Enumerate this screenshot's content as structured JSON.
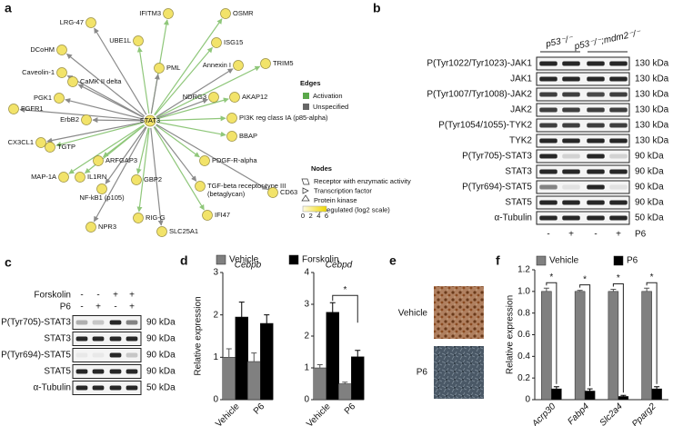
{
  "panels": [
    "a",
    "b",
    "c",
    "d",
    "e",
    "f"
  ],
  "network": {
    "center": "STAT3",
    "nodes": [
      {
        "label": "LRG-47",
        "edge": "Unspecified"
      },
      {
        "label": "IFITM3",
        "edge": "Activation"
      },
      {
        "label": "OSMR",
        "edge": "Activation"
      },
      {
        "label": "UBE1L",
        "edge": "Activation"
      },
      {
        "label": "DCoHM",
        "edge": "Unspecified"
      },
      {
        "label": "ISG15",
        "edge": "Activation"
      },
      {
        "label": "PML",
        "edge": "Unspecified"
      },
      {
        "label": "Annexin I",
        "edge": "Unspecified"
      },
      {
        "label": "TRIM5",
        "edge": "Activation"
      },
      {
        "label": "Caveolin-1",
        "edge": "Unspecified"
      },
      {
        "label": "CaMK II delta",
        "edge": "Unspecified"
      },
      {
        "label": "NDRG3",
        "edge": "Unspecified"
      },
      {
        "label": "AKAP12",
        "edge": "Activation"
      },
      {
        "label": "FGFR1",
        "edge": "Unspecified"
      },
      {
        "label": "PGK1",
        "edge": "Unspecified"
      },
      {
        "label": "ErbB2",
        "edge": "Unspecified"
      },
      {
        "label": "PI3K reg class IA (p85-alpha)",
        "edge": "Activation"
      },
      {
        "label": "CX3CL1",
        "edge": "Unspecified"
      },
      {
        "label": "TGTP",
        "edge": "Activation"
      },
      {
        "label": "BBAP",
        "edge": "Activation"
      },
      {
        "label": "ARFGAP3",
        "edge": "Activation"
      },
      {
        "label": "PDGF-R-alpha",
        "edge": "Activation"
      },
      {
        "label": "MAP-1A",
        "edge": "Activation"
      },
      {
        "label": "IL1RN",
        "edge": "Activation"
      },
      {
        "label": "GBP2",
        "edge": "Activation"
      },
      {
        "label": "NF-kB1 (p105)",
        "edge": "Unspecified"
      },
      {
        "label": [
          "TGF-beta receptor type III",
          "(betaglycan)"
        ],
        "edge": "Unspecified"
      },
      {
        "label": "CD63",
        "edge": "Unspecified"
      },
      {
        "label": "RIG-G",
        "edge": "Activation"
      },
      {
        "label": "IFI47",
        "edge": "Activation"
      },
      {
        "label": "NPR3",
        "edge": "Unspecified"
      },
      {
        "label": "SLC25A1",
        "edge": "Unspecified"
      }
    ],
    "edge_legend": {
      "title": "Edges",
      "items": [
        "Activation",
        "Unspecified"
      ]
    },
    "node_legend": {
      "title": "Nodes",
      "items": [
        "Receptor with enzymatic activity",
        "Transcription factor",
        "Protein kinase",
        "Up regulated (log2 scale)"
      ],
      "scale": [
        0,
        2,
        4,
        6
      ]
    }
  },
  "blot_b": {
    "header": [
      "p53⁻/⁻",
      "p53⁻/⁻;mdm2⁻/⁻"
    ],
    "rows": [
      {
        "label": "P(Tyr1022/Tyr1023)-JAK1",
        "size": "130 kDa"
      },
      {
        "label": "JAK1",
        "size": "130 kDa"
      },
      {
        "label": "P(Tyr1007/Tyr1008)-JAK2",
        "size": "130 kDa"
      },
      {
        "label": "JAK2",
        "size": "130 kDa"
      },
      {
        "label": "P(Tyr1054/1055)-TYK2",
        "size": "130 kDa"
      },
      {
        "label": "TYK2",
        "size": "130 kDa"
      },
      {
        "label": "P(Tyr705)-STAT3",
        "size": "90 kDa"
      },
      {
        "label": "STAT3",
        "size": "90 kDa"
      },
      {
        "label": "P(Tyr694)-STAT5",
        "size": "90 kDa"
      },
      {
        "label": "STAT5",
        "size": "90 kDa"
      },
      {
        "label": "α-Tubulin",
        "size": "50 kDa"
      }
    ],
    "treatment": {
      "label": "P6",
      "lanes": [
        "-",
        "+",
        "-",
        "+"
      ]
    }
  },
  "blot_c": {
    "treatments": [
      {
        "label": "Forskolin",
        "lanes": [
          "-",
          "-",
          "+",
          "+"
        ]
      },
      {
        "label": "P6",
        "lanes": [
          "-",
          "+",
          "-",
          "+"
        ]
      }
    ],
    "rows": [
      {
        "label": "P(Tyr705)-STAT3",
        "size": "90 kDa"
      },
      {
        "label": "STAT3",
        "size": "90 kDa"
      },
      {
        "label": "P(Tyr694)-STAT5",
        "size": "90 kDa"
      },
      {
        "label": "STAT5",
        "size": "90 kDa"
      },
      {
        "label": "α-Tubulin",
        "size": "50 kDa"
      }
    ]
  },
  "panel_e": {
    "labels": [
      "Vehicle",
      "P6"
    ]
  },
  "chart_data": [
    {
      "type": "bar",
      "title": "Cebpb",
      "ylabel": "Relative expression",
      "categories": [
        "Vehicle",
        "P6"
      ],
      "series": [
        {
          "name": "Vehicle",
          "color": "#808080",
          "values": [
            1.0,
            0.9
          ],
          "errors": [
            0.2,
            0.2
          ]
        },
        {
          "name": "Forskolin",
          "color": "#000000",
          "values": [
            1.95,
            1.8
          ],
          "errors": [
            0.35,
            0.2
          ]
        }
      ],
      "ylim": [
        0,
        3
      ],
      "yticks": [
        0,
        1,
        2,
        3
      ]
    },
    {
      "type": "bar",
      "title": "Cebpd",
      "categories": [
        "Vehicle",
        "P6"
      ],
      "series": [
        {
          "color": "#808080",
          "values": [
            1.0,
            0.5
          ],
          "errors": [
            0.1,
            0.05
          ]
        },
        {
          "color": "#000000",
          "values": [
            2.75,
            1.35
          ],
          "errors": [
            0.3,
            0.2
          ]
        }
      ],
      "ylim": [
        0,
        4
      ],
      "yticks": [
        0,
        1,
        2,
        3,
        4
      ],
      "significance": [
        "*"
      ]
    },
    {
      "type": "bar",
      "ylabel": "Relative expression",
      "categories": [
        "Acrp30",
        "Fabp4",
        "Slc2a4",
        "Pparg2"
      ],
      "series": [
        {
          "name": "Vehicle",
          "color": "#808080",
          "values": [
            1.0,
            1.0,
            1.0,
            1.0
          ],
          "errors": [
            0.03,
            0.01,
            0.02,
            0.03
          ]
        },
        {
          "name": "P6",
          "color": "#000000",
          "values": [
            0.1,
            0.08,
            0.03,
            0.1
          ],
          "errors": [
            0.02,
            0.02,
            0.01,
            0.02
          ]
        }
      ],
      "ylim": [
        0,
        1.2
      ],
      "yticks": [
        0,
        0.2,
        0.4,
        0.6,
        0.8,
        {
          "value": 1,
          "label": "1.0"
        },
        1.2
      ],
      "significance": [
        "*",
        "*",
        "*",
        "*"
      ]
    }
  ]
}
